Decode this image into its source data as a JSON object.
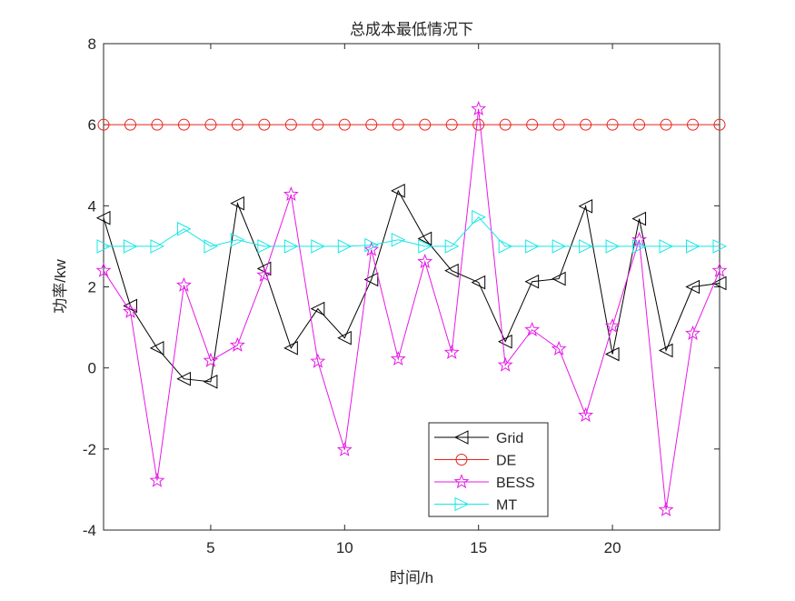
{
  "chart_data": {
    "type": "line",
    "title": "总成本最低情况下",
    "xlabel": "时间/h",
    "ylabel": "功率/kw",
    "xlim": [
      1,
      24
    ],
    "ylim": [
      -4,
      8
    ],
    "xticks": [
      5,
      10,
      15,
      20
    ],
    "yticks": [
      -4,
      -2,
      0,
      2,
      4,
      6,
      8
    ],
    "grid": false,
    "legend_position": "bottom-center",
    "x": [
      1,
      2,
      3,
      4,
      5,
      6,
      7,
      8,
      9,
      10,
      11,
      12,
      13,
      14,
      15,
      16,
      17,
      18,
      19,
      20,
      21,
      22,
      23,
      24
    ],
    "series": [
      {
        "name": "Grid",
        "color": "#000000",
        "marker": "triangle-left",
        "values": [
          3.7,
          1.53,
          0.49,
          -0.27,
          -0.34,
          4.06,
          2.45,
          0.49,
          1.46,
          0.74,
          2.18,
          4.37,
          3.19,
          2.4,
          2.11,
          0.65,
          2.13,
          2.2,
          3.99,
          0.34,
          3.68,
          0.43,
          2.0,
          2.09
        ]
      },
      {
        "name": "DE",
        "color": "#e8221b",
        "marker": "circle",
        "values": [
          6,
          6,
          6,
          6,
          6,
          6,
          6,
          6,
          6,
          6,
          6,
          6,
          6,
          6,
          6,
          6,
          6,
          6,
          6,
          6,
          6,
          6,
          6,
          6
        ]
      },
      {
        "name": "BESS",
        "color": "#e619e6",
        "marker": "pentagram",
        "values": [
          2.4,
          1.39,
          -2.78,
          2.04,
          0.18,
          0.56,
          2.29,
          4.28,
          0.16,
          -2.02,
          2.92,
          0.22,
          2.62,
          0.38,
          6.39,
          0.07,
          0.94,
          0.47,
          -1.17,
          1.03,
          3.16,
          -3.5,
          0.85,
          2.4
        ]
      },
      {
        "name": "MT",
        "color": "#19e6e6",
        "marker": "triangle-right",
        "values": [
          3,
          3,
          3,
          3.43,
          3,
          3.16,
          3,
          3,
          3,
          3,
          3.03,
          3.16,
          3,
          3,
          3.72,
          3,
          3,
          3,
          3,
          3,
          3,
          3,
          3,
          3
        ]
      }
    ]
  }
}
